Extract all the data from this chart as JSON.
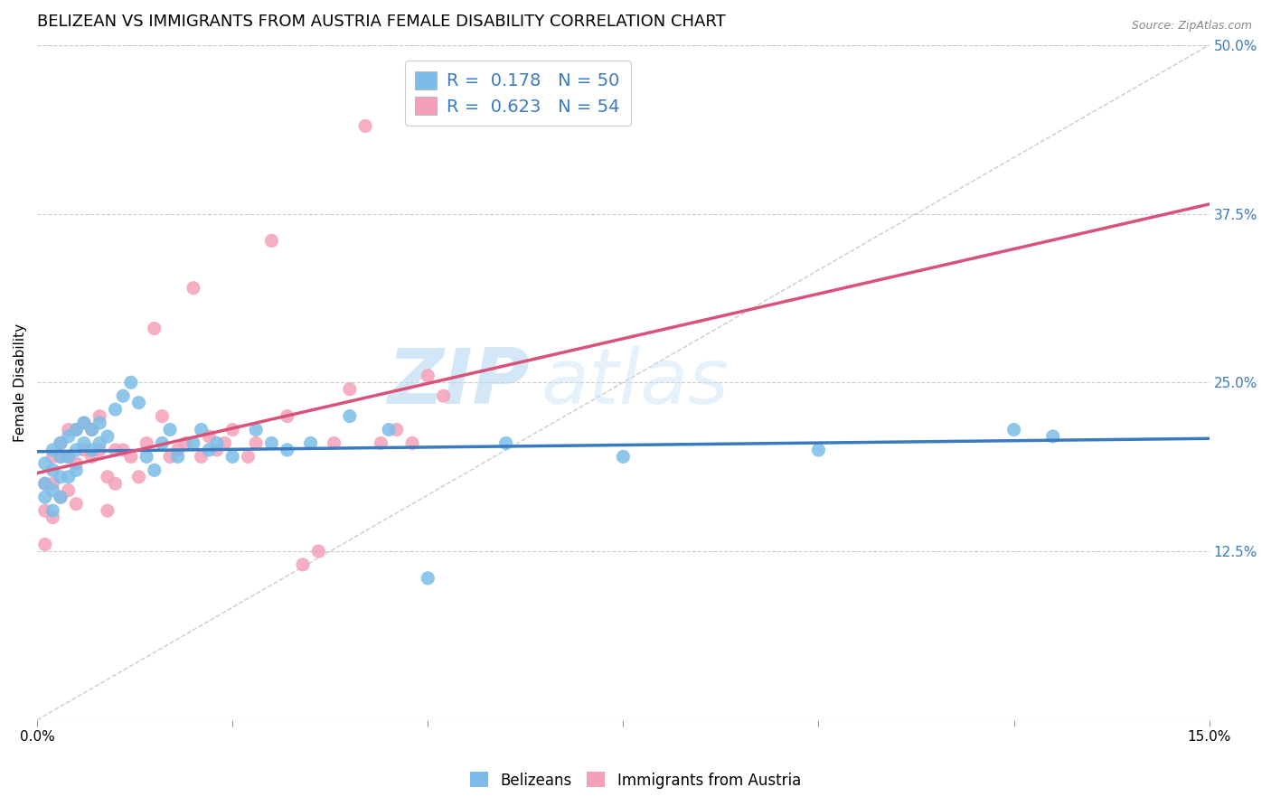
{
  "title": "BELIZEAN VS IMMIGRANTS FROM AUSTRIA FEMALE DISABILITY CORRELATION CHART",
  "source": "Source: ZipAtlas.com",
  "ylabel": "Female Disability",
  "xlim": [
    0.0,
    0.15
  ],
  "ylim": [
    0.0,
    0.5
  ],
  "ytick_vals": [
    0.125,
    0.25,
    0.375,
    0.5
  ],
  "xtick_vals": [
    0.0,
    0.025,
    0.05,
    0.075,
    0.1,
    0.125,
    0.15
  ],
  "legend_labels": [
    "Belizeans",
    "Immigrants from Austria"
  ],
  "R_blue": 0.178,
  "N_blue": 50,
  "R_pink": 0.623,
  "N_pink": 54,
  "blue_color": "#7bbde8",
  "pink_color": "#f4a0b8",
  "blue_line_color": "#3a7bbf",
  "pink_line_color": "#d9527a",
  "diagonal_color": "#cccccc",
  "title_fontsize": 13,
  "label_fontsize": 11,
  "tick_fontsize": 11,
  "blue_scatter_x": [
    0.001,
    0.001,
    0.001,
    0.002,
    0.002,
    0.002,
    0.002,
    0.003,
    0.003,
    0.003,
    0.003,
    0.004,
    0.004,
    0.004,
    0.005,
    0.005,
    0.005,
    0.006,
    0.006,
    0.007,
    0.007,
    0.008,
    0.008,
    0.009,
    0.01,
    0.011,
    0.012,
    0.013,
    0.014,
    0.015,
    0.016,
    0.017,
    0.018,
    0.02,
    0.021,
    0.022,
    0.023,
    0.025,
    0.028,
    0.03,
    0.032,
    0.035,
    0.04,
    0.045,
    0.05,
    0.06,
    0.075,
    0.1,
    0.125,
    0.13
  ],
  "blue_scatter_y": [
    0.19,
    0.175,
    0.165,
    0.2,
    0.185,
    0.17,
    0.155,
    0.205,
    0.195,
    0.18,
    0.165,
    0.21,
    0.195,
    0.18,
    0.215,
    0.2,
    0.185,
    0.22,
    0.205,
    0.215,
    0.2,
    0.22,
    0.205,
    0.21,
    0.23,
    0.24,
    0.25,
    0.235,
    0.195,
    0.185,
    0.205,
    0.215,
    0.195,
    0.205,
    0.215,
    0.2,
    0.205,
    0.195,
    0.215,
    0.205,
    0.2,
    0.205,
    0.225,
    0.215,
    0.105,
    0.205,
    0.195,
    0.2,
    0.215,
    0.21
  ],
  "pink_scatter_x": [
    0.001,
    0.001,
    0.001,
    0.002,
    0.002,
    0.002,
    0.003,
    0.003,
    0.003,
    0.004,
    0.004,
    0.004,
    0.005,
    0.005,
    0.005,
    0.006,
    0.006,
    0.007,
    0.007,
    0.008,
    0.008,
    0.009,
    0.009,
    0.01,
    0.01,
    0.011,
    0.012,
    0.013,
    0.014,
    0.015,
    0.016,
    0.017,
    0.018,
    0.019,
    0.02,
    0.021,
    0.022,
    0.023,
    0.024,
    0.025,
    0.027,
    0.028,
    0.03,
    0.032,
    0.034,
    0.036,
    0.038,
    0.04,
    0.042,
    0.044,
    0.046,
    0.048,
    0.05,
    0.052
  ],
  "pink_scatter_y": [
    0.175,
    0.155,
    0.13,
    0.195,
    0.175,
    0.15,
    0.205,
    0.195,
    0.165,
    0.215,
    0.195,
    0.17,
    0.215,
    0.19,
    0.16,
    0.22,
    0.2,
    0.215,
    0.195,
    0.225,
    0.2,
    0.18,
    0.155,
    0.2,
    0.175,
    0.2,
    0.195,
    0.18,
    0.205,
    0.29,
    0.225,
    0.195,
    0.2,
    0.205,
    0.32,
    0.195,
    0.21,
    0.2,
    0.205,
    0.215,
    0.195,
    0.205,
    0.355,
    0.225,
    0.115,
    0.125,
    0.205,
    0.245,
    0.44,
    0.205,
    0.215,
    0.205,
    0.255,
    0.24
  ],
  "watermark_zip": "ZIP",
  "watermark_atlas": "atlas"
}
